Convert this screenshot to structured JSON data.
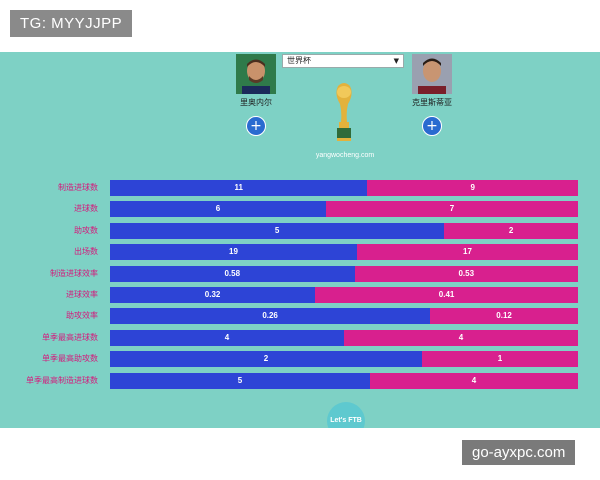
{
  "watermark_top": "TG: MYYJJPP",
  "watermark_bottom": "go-ayxpc.com",
  "colors": {
    "background": "#7ed1c5",
    "left_bar": "#2d44d6",
    "right_bar": "#d8208e",
    "label": "#d41a7c"
  },
  "player_left": {
    "name": "里奥内尔",
    "icon": "player-photo-messi"
  },
  "player_right": {
    "name": "克里斯蒂亚",
    "icon": "player-photo-ronaldo"
  },
  "competition_select": {
    "value": "世界杯"
  },
  "site": "yangwocheng.com",
  "logo_text": "Let's FTB",
  "stats": [
    {
      "label": "制造进球数",
      "left": 11,
      "right": 9,
      "left_text": "11",
      "right_text": "9"
    },
    {
      "label": "进球数",
      "left": 6,
      "right": 7,
      "left_text": "6",
      "right_text": "7"
    },
    {
      "label": "助攻数",
      "left": 5,
      "right": 2,
      "left_text": "5",
      "right_text": "2"
    },
    {
      "label": "出场数",
      "left": 19,
      "right": 17,
      "left_text": "19",
      "right_text": "17"
    },
    {
      "label": "制造进球效率",
      "left": 0.58,
      "right": 0.53,
      "left_text": "0.58",
      "right_text": "0.53"
    },
    {
      "label": "进球效率",
      "left": 0.32,
      "right": 0.41,
      "left_text": "0.32",
      "right_text": "0.41"
    },
    {
      "label": "助攻效率",
      "left": 0.26,
      "right": 0.12,
      "left_text": "0.26",
      "right_text": "0.12"
    },
    {
      "label": "单季最高进球数",
      "left": 4,
      "right": 4,
      "left_text": "4",
      "right_text": "4"
    },
    {
      "label": "单季最高助攻数",
      "left": 2,
      "right": 1,
      "left_text": "2",
      "right_text": "1"
    },
    {
      "label": "单季最高制造进球数",
      "left": 5,
      "right": 4,
      "left_text": "5",
      "right_text": "4"
    }
  ]
}
